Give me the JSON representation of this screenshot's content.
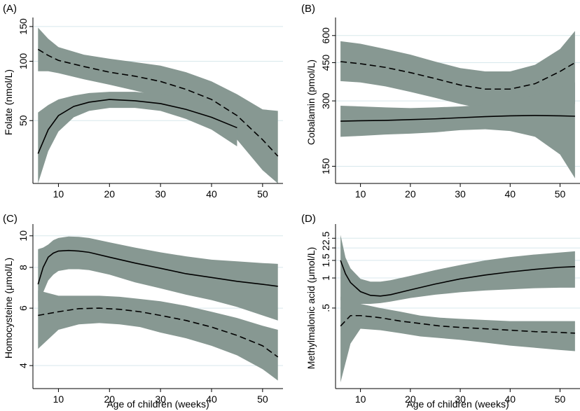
{
  "chart_data": [
    {
      "type": "line",
      "panel_label": "(A)",
      "ylabel": "Folate (nmol/L)",
      "xlabel": "",
      "y_scale": "log",
      "ylim": [
        24,
        160
      ],
      "xlim": [
        5,
        54
      ],
      "x_ticks": [
        10,
        20,
        30,
        40,
        50
      ],
      "x_tick_labels": [
        "10",
        "20",
        "30",
        "40",
        "50"
      ],
      "y_ticks": [
        50,
        100,
        150
      ],
      "y_tick_labels": [
        "50",
        "100",
        "150"
      ],
      "series": [
        {
          "name": "dashed",
          "style": "dashed",
          "x": [
            6,
            8,
            10,
            15,
            20,
            25,
            30,
            35,
            40,
            45,
            50,
            53
          ],
          "y": [
            115,
            107,
            101,
            94,
            88,
            84,
            79,
            72,
            64,
            53,
            40,
            33
          ],
          "lower": [
            89,
            89,
            87,
            81,
            76,
            71,
            66,
            58,
            50,
            40,
            28,
            24
          ],
          "upper": [
            148,
            130,
            118,
            108,
            103,
            99,
            95,
            88,
            79,
            68,
            57,
            56
          ]
        },
        {
          "name": "solid",
          "style": "solid",
          "x": [
            6,
            8,
            10,
            13,
            16,
            20,
            25,
            30,
            35,
            40,
            45
          ],
          "y": [
            34,
            45,
            53,
            59,
            62,
            64,
            63,
            61,
            57,
            52,
            46
          ],
          "lower": [
            24,
            35,
            44,
            52,
            56,
            58,
            58,
            56,
            51,
            45,
            37
          ],
          "upper": [
            55,
            60,
            64,
            67,
            69,
            70,
            70,
            68,
            65,
            61,
            57
          ]
        }
      ]
    },
    {
      "type": "line",
      "panel_label": "(B)",
      "ylabel": "Cobalamin (pmol/L)",
      "xlabel": "",
      "y_scale": "log",
      "ylim": [
        125,
        700
      ],
      "xlim": [
        5,
        54
      ],
      "x_ticks": [
        10,
        20,
        30,
        40,
        50
      ],
      "x_tick_labels": [
        "10",
        "20",
        "30",
        "40",
        "50"
      ],
      "y_ticks": [
        150,
        300,
        450,
        600
      ],
      "y_tick_labels": [
        "150",
        "300",
        "450",
        "600"
      ],
      "series": [
        {
          "name": "dashed",
          "style": "dashed",
          "x": [
            6,
            10,
            15,
            20,
            25,
            30,
            35,
            40,
            45,
            50,
            53
          ],
          "y": [
            455,
            445,
            428,
            405,
            380,
            355,
            340,
            340,
            360,
            410,
            450
          ],
          "lower": [
            370,
            365,
            350,
            330,
            310,
            290,
            275,
            270,
            275,
            285,
            290
          ],
          "upper": [
            565,
            550,
            520,
            490,
            455,
            425,
            410,
            410,
            440,
            520,
            630
          ]
        },
        {
          "name": "solid",
          "style": "solid",
          "x": [
            6,
            10,
            15,
            20,
            25,
            30,
            35,
            40,
            45,
            50,
            53
          ],
          "y": [
            242,
            243,
            244,
            246,
            248,
            251,
            254,
            256,
            257,
            256,
            255
          ],
          "lower": [
            205,
            207,
            210,
            212,
            215,
            220,
            222,
            218,
            205,
            170,
            132
          ],
          "upper": [
            285,
            283,
            280,
            278,
            280,
            283,
            288,
            300,
            320,
            345,
            365
          ]
        }
      ]
    },
    {
      "type": "line",
      "panel_label": "(C)",
      "ylabel": "Homocysteine (μmol/L)",
      "xlabel": "Age of children (weeks)",
      "y_scale": "log",
      "ylim": [
        3.4,
        10.6
      ],
      "xlim": [
        5,
        54
      ],
      "x_ticks": [
        10,
        20,
        30,
        40,
        50
      ],
      "x_tick_labels": [
        "10",
        "20",
        "30",
        "40",
        "50"
      ],
      "y_ticks": [
        4,
        6,
        8,
        10
      ],
      "y_tick_labels": [
        "4",
        "6",
        "8",
        "10"
      ],
      "series": [
        {
          "name": "solid",
          "style": "solid",
          "x": [
            6,
            7,
            8,
            9,
            10,
            12,
            14,
            16,
            20,
            25,
            30,
            35,
            40,
            45,
            50,
            53
          ],
          "y": [
            7.1,
            8.0,
            8.6,
            8.85,
            8.98,
            9.02,
            8.98,
            8.9,
            8.6,
            8.25,
            7.95,
            7.65,
            7.45,
            7.25,
            7.1,
            7.0
          ],
          "lower": [
            6.3,
            6.7,
            7.3,
            7.6,
            7.8,
            7.9,
            7.9,
            7.85,
            7.6,
            7.2,
            6.9,
            6.6,
            6.35,
            6.05,
            5.7,
            5.5
          ],
          "upper": [
            9.1,
            9.2,
            9.4,
            9.7,
            9.85,
            9.95,
            9.93,
            9.85,
            9.55,
            9.2,
            8.9,
            8.65,
            8.45,
            8.35,
            8.25,
            8.2
          ]
        },
        {
          "name": "dashed",
          "style": "dashed",
          "x": [
            6,
            10,
            14,
            18,
            22,
            26,
            30,
            35,
            40,
            45,
            50,
            53
          ],
          "y": [
            5.7,
            5.85,
            5.98,
            6.0,
            5.95,
            5.85,
            5.7,
            5.5,
            5.25,
            4.95,
            4.6,
            4.25
          ],
          "lower": [
            4.5,
            5.15,
            5.35,
            5.4,
            5.35,
            5.25,
            5.05,
            4.85,
            4.6,
            4.3,
            3.9,
            3.6
          ],
          "upper": [
            6.8,
            6.55,
            6.55,
            6.55,
            6.5,
            6.4,
            6.3,
            6.1,
            5.85,
            5.6,
            5.3,
            5.15
          ]
        }
      ]
    },
    {
      "type": "line",
      "panel_label": "(D)",
      "ylabel": "Methylmalonic acid (μmol/L)",
      "xlabel": "Age of children (weeks)",
      "y_scale": "log",
      "ylim": [
        0.078,
        3.2
      ],
      "xlim": [
        5,
        54
      ],
      "x_ticks": [
        10,
        20,
        30,
        40,
        50
      ],
      "x_tick_labels": [
        "10",
        "20",
        "30",
        "40",
        "50"
      ],
      "y_ticks": [
        0.5,
        1,
        1.5,
        2,
        2.5
      ],
      "y_tick_labels": [
        ".5",
        "1",
        "1.5",
        "2",
        "2.5"
      ],
      "series": [
        {
          "name": "solid",
          "style": "solid",
          "x": [
            6,
            7,
            8,
            10,
            12,
            14,
            16,
            20,
            25,
            30,
            35,
            40,
            45,
            50,
            53
          ],
          "y": [
            1.5,
            1.1,
            0.9,
            0.73,
            0.67,
            0.66,
            0.68,
            0.76,
            0.87,
            0.98,
            1.07,
            1.15,
            1.22,
            1.28,
            1.3
          ],
          "lower": [
            0.6,
            0.55,
            0.54,
            0.55,
            0.55,
            0.56,
            0.58,
            0.63,
            0.68,
            0.72,
            0.75,
            0.77,
            0.79,
            0.8,
            0.8
          ],
          "upper": [
            2.7,
            1.6,
            1.25,
            0.98,
            0.92,
            0.92,
            0.95,
            1.05,
            1.2,
            1.35,
            1.5,
            1.62,
            1.72,
            1.8,
            1.85
          ]
        },
        {
          "name": "dashed",
          "style": "dashed",
          "x": [
            6,
            8,
            10,
            14,
            18,
            22,
            26,
            30,
            35,
            40,
            45,
            50,
            53
          ],
          "y": [
            0.33,
            0.42,
            0.42,
            0.4,
            0.37,
            0.35,
            0.33,
            0.32,
            0.31,
            0.3,
            0.29,
            0.285,
            0.28
          ],
          "lower": [
            0.09,
            0.22,
            0.31,
            0.3,
            0.28,
            0.26,
            0.25,
            0.24,
            0.225,
            0.21,
            0.2,
            0.19,
            0.185
          ],
          "upper": [
            0.65,
            0.58,
            0.55,
            0.5,
            0.46,
            0.42,
            0.4,
            0.39,
            0.38,
            0.37,
            0.37,
            0.37,
            0.37
          ]
        }
      ]
    }
  ]
}
